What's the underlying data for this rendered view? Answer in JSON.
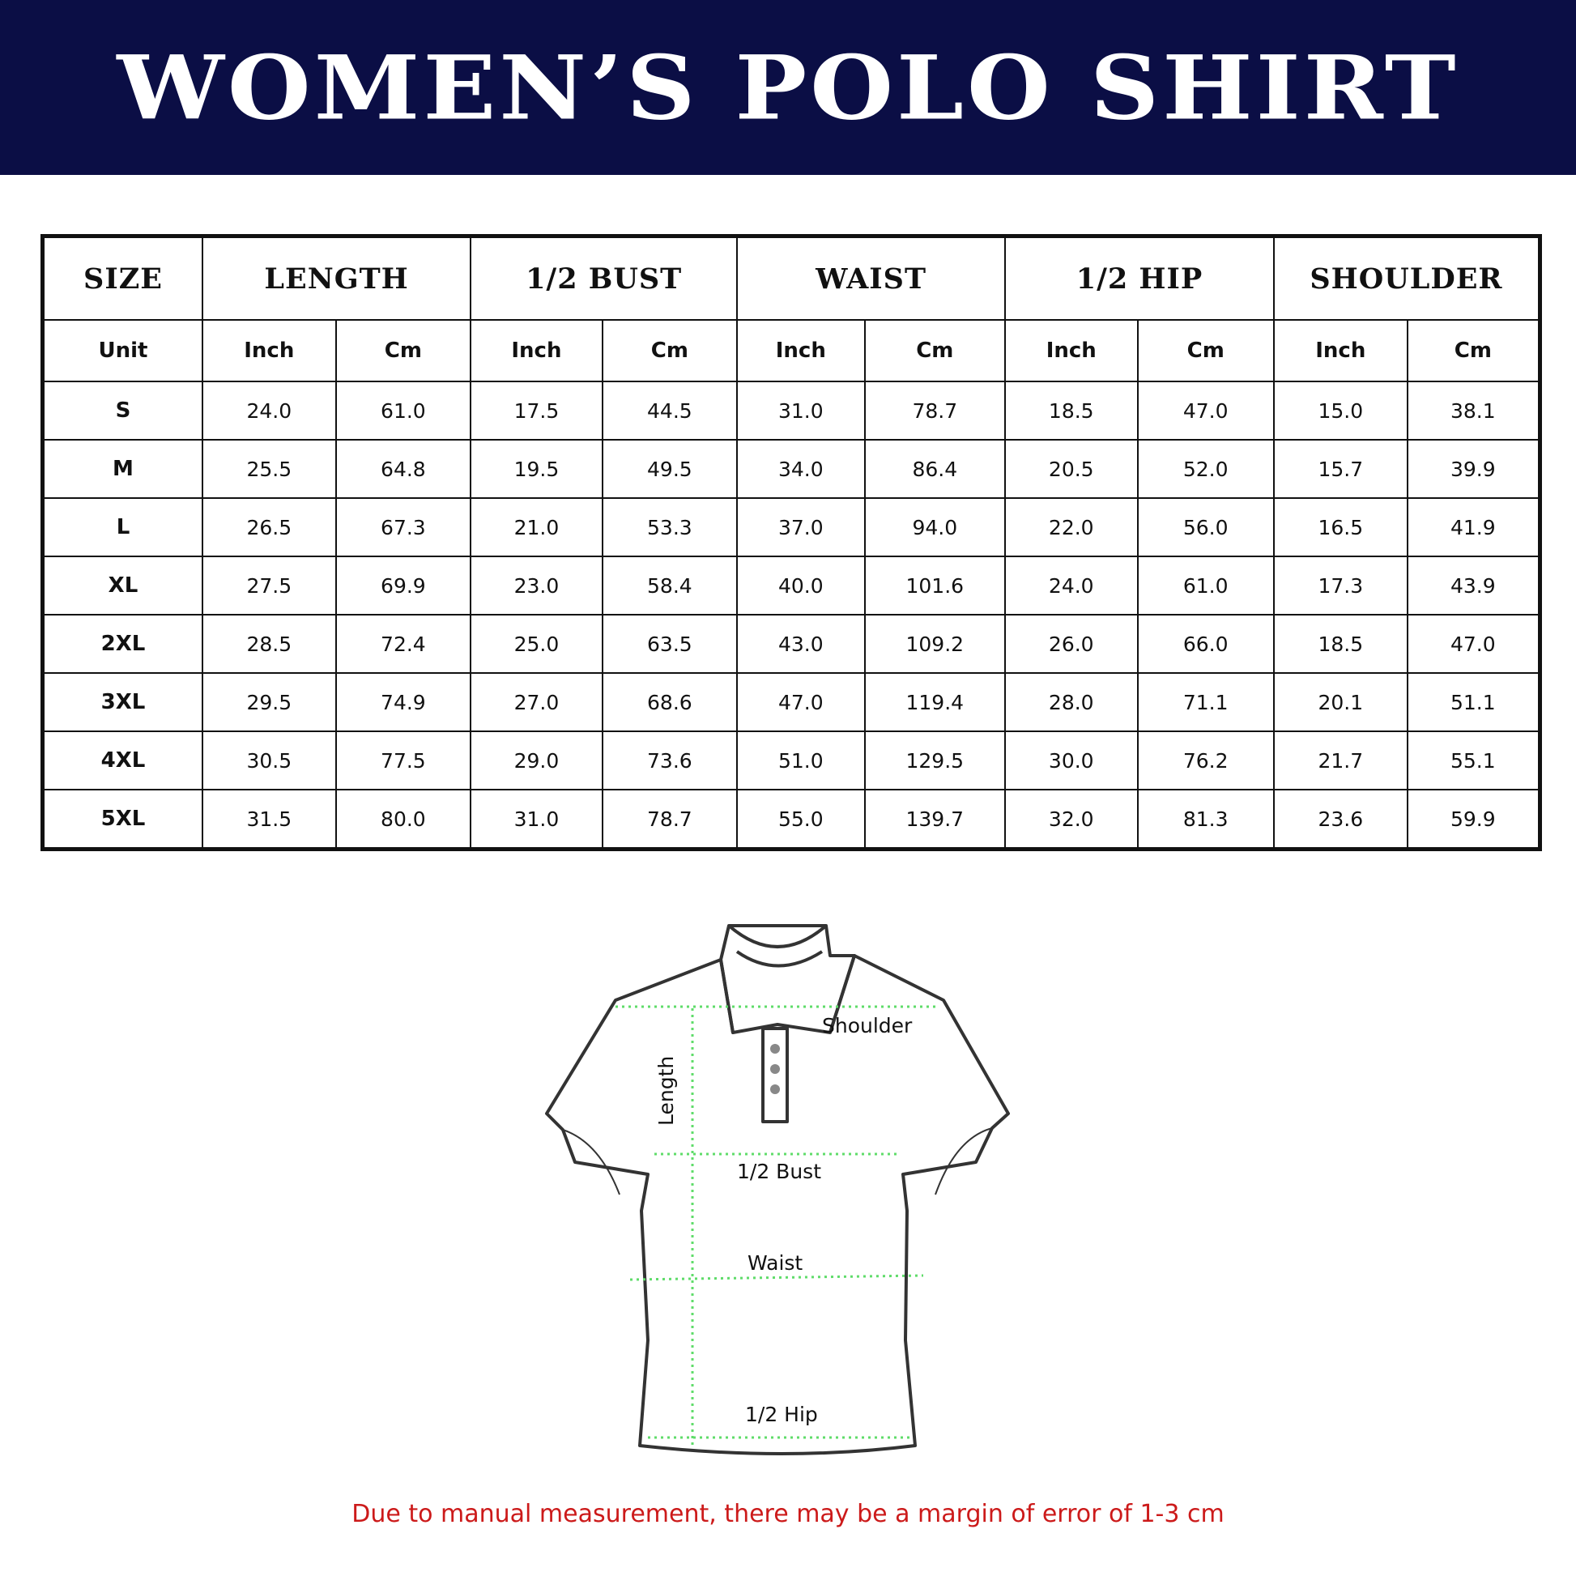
{
  "title": "WOMEN’S POLO SHIRT",
  "table": {
    "headers": [
      "SIZE",
      "LENGTH",
      "1/2 BUST",
      "WAIST",
      "1/2 HIP",
      "SHOULDER"
    ],
    "units": [
      "Unit",
      "Inch",
      "Cm",
      "Inch",
      "Cm",
      "Inch",
      "Cm",
      "Inch",
      "Cm",
      "Inch",
      "Cm"
    ],
    "rows": [
      [
        "S",
        "24.0",
        "61.0",
        "17.5",
        "44.5",
        "31.0",
        "78.7",
        "18.5",
        "47.0",
        "15.0",
        "38.1"
      ],
      [
        "M",
        "25.5",
        "64.8",
        "19.5",
        "49.5",
        "34.0",
        "86.4",
        "20.5",
        "52.0",
        "15.7",
        "39.9"
      ],
      [
        "L",
        "26.5",
        "67.3",
        "21.0",
        "53.3",
        "37.0",
        "94.0",
        "22.0",
        "56.0",
        "16.5",
        "41.9"
      ],
      [
        "XL",
        "27.5",
        "69.9",
        "23.0",
        "58.4",
        "40.0",
        "101.6",
        "24.0",
        "61.0",
        "17.3",
        "43.9"
      ],
      [
        "2XL",
        "28.5",
        "72.4",
        "25.0",
        "63.5",
        "43.0",
        "109.2",
        "26.0",
        "66.0",
        "18.5",
        "47.0"
      ],
      [
        "3XL",
        "29.5",
        "74.9",
        "27.0",
        "68.6",
        "47.0",
        "119.4",
        "28.0",
        "71.1",
        "20.1",
        "51.1"
      ],
      [
        "4XL",
        "30.5",
        "77.5",
        "29.0",
        "73.6",
        "51.0",
        "129.5",
        "30.0",
        "76.2",
        "21.7",
        "55.1"
      ],
      [
        "5XL",
        "31.5",
        "80.0",
        "31.0",
        "78.7",
        "55.0",
        "139.7",
        "32.0",
        "81.3",
        "23.6",
        "59.9"
      ]
    ]
  },
  "diagram": {
    "shoulder": "Shoulder",
    "length": "Length",
    "bust": "1/2 Bust",
    "waist": "Waist",
    "hip": "1/2 Hip"
  },
  "note": "Due to manual measurement, there may be a margin of error of 1-3 cm",
  "colors": {
    "banner": "#0b0e45",
    "note": "#cc1a1a",
    "guide": "#5fdc6a"
  }
}
